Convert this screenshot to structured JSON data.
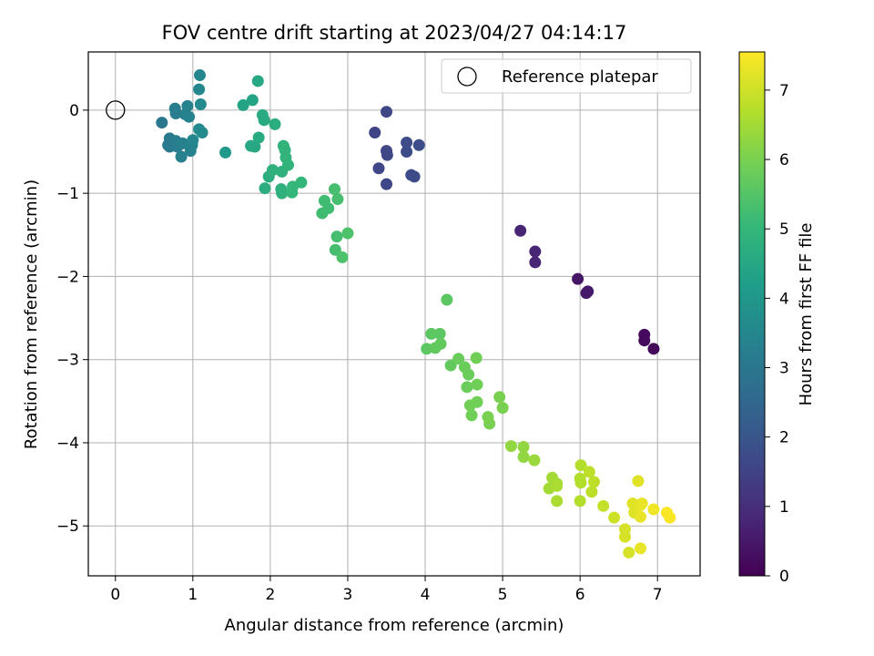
{
  "chart_data": {
    "type": "scatter",
    "title": "FOV centre drift starting at 2023/04/27 04:14:17",
    "xlabel": "Angular distance from reference (arcmin)",
    "ylabel": "Rotation from reference (arcmin)",
    "xlim": [
      -0.35,
      7.55
    ],
    "ylim": [
      -5.6,
      0.7
    ],
    "xticks": [
      "0",
      "1",
      "2",
      "3",
      "4",
      "5",
      "6",
      "7"
    ],
    "yticks": [
      "0",
      "−1",
      "−2",
      "−3",
      "−4",
      "−5"
    ],
    "grid": true,
    "legend": {
      "position": "top-right",
      "label": "Reference platepar"
    },
    "reference_point": {
      "x": 0,
      "y": 0
    },
    "colorbar": {
      "label": "Hours from first FF file",
      "min": 0,
      "max": 7.55,
      "ticks": [
        "0",
        "1",
        "2",
        "3",
        "4",
        "5",
        "6",
        "7"
      ],
      "colormap": [
        "#440154",
        "#482878",
        "#3e4a89",
        "#31688e",
        "#26828e",
        "#1f9e89",
        "#35b779",
        "#6ece58",
        "#b5de2b",
        "#fde725"
      ]
    },
    "series": [
      {
        "points": [
          {
            "x": 6.83,
            "y": -2.7,
            "c": 0.2
          },
          {
            "x": 6.83,
            "y": -2.77,
            "c": 0.2
          },
          {
            "x": 6.95,
            "y": -2.87,
            "c": 0.15
          },
          {
            "x": 5.97,
            "y": -2.03,
            "c": 0.45
          },
          {
            "x": 6.08,
            "y": -2.2,
            "c": 0.5
          },
          {
            "x": 6.1,
            "y": -2.18,
            "c": 0.5
          },
          {
            "x": 5.23,
            "y": -1.45,
            "c": 0.75
          },
          {
            "x": 5.42,
            "y": -1.7,
            "c": 0.8
          },
          {
            "x": 5.42,
            "y": -1.83,
            "c": 0.8
          },
          {
            "x": 3.35,
            "y": -0.27,
            "c": 1.5
          },
          {
            "x": 3.5,
            "y": -0.02,
            "c": 1.6
          },
          {
            "x": 3.5,
            "y": -0.49,
            "c": 1.6
          },
          {
            "x": 3.51,
            "y": -0.54,
            "c": 1.6
          },
          {
            "x": 3.4,
            "y": -0.7,
            "c": 1.6
          },
          {
            "x": 3.5,
            "y": -0.89,
            "c": 1.6
          },
          {
            "x": 3.76,
            "y": -0.39,
            "c": 1.7
          },
          {
            "x": 3.76,
            "y": -0.5,
            "c": 1.7
          },
          {
            "x": 3.82,
            "y": -0.78,
            "c": 1.7
          },
          {
            "x": 3.86,
            "y": -0.8,
            "c": 1.7
          },
          {
            "x": 3.92,
            "y": -0.42,
            "c": 1.75
          },
          {
            "x": 0.6,
            "y": -0.15,
            "c": 3.0
          },
          {
            "x": 0.7,
            "y": -0.34,
            "c": 3.1
          },
          {
            "x": 0.68,
            "y": -0.42,
            "c": 3.1
          },
          {
            "x": 0.7,
            "y": -0.44,
            "c": 3.1
          },
          {
            "x": 0.77,
            "y": 0.02,
            "c": 3.2
          },
          {
            "x": 0.78,
            "y": -0.04,
            "c": 3.2
          },
          {
            "x": 0.78,
            "y": -0.37,
            "c": 3.2
          },
          {
            "x": 0.8,
            "y": -0.44,
            "c": 3.2
          },
          {
            "x": 0.87,
            "y": -0.4,
            "c": 3.3
          },
          {
            "x": 0.85,
            "y": -0.56,
            "c": 3.3
          },
          {
            "x": 0.9,
            "y": -0.05,
            "c": 3.3
          },
          {
            "x": 0.93,
            "y": 0.05,
            "c": 3.4
          },
          {
            "x": 0.95,
            "y": -0.08,
            "c": 3.4
          },
          {
            "x": 0.97,
            "y": -0.49,
            "c": 3.4
          },
          {
            "x": 0.99,
            "y": -0.42,
            "c": 3.4
          },
          {
            "x": 1.0,
            "y": -0.36,
            "c": 3.5
          },
          {
            "x": 1.09,
            "y": 0.42,
            "c": 3.5
          },
          {
            "x": 1.08,
            "y": 0.25,
            "c": 3.5
          },
          {
            "x": 1.1,
            "y": 0.07,
            "c": 3.6
          },
          {
            "x": 1.08,
            "y": -0.23,
            "c": 3.6
          },
          {
            "x": 1.12,
            "y": -0.27,
            "c": 3.6
          },
          {
            "x": 1.42,
            "y": -0.51,
            "c": 4.0
          },
          {
            "x": 1.65,
            "y": 0.06,
            "c": 4.4
          },
          {
            "x": 1.77,
            "y": 0.12,
            "c": 4.4
          },
          {
            "x": 1.84,
            "y": 0.35,
            "c": 4.5
          },
          {
            "x": 1.75,
            "y": -0.43,
            "c": 4.5
          },
          {
            "x": 1.8,
            "y": -0.44,
            "c": 4.5
          },
          {
            "x": 1.85,
            "y": -0.33,
            "c": 4.6
          },
          {
            "x": 1.9,
            "y": -0.06,
            "c": 4.6
          },
          {
            "x": 1.92,
            "y": -0.12,
            "c": 4.6
          },
          {
            "x": 2.06,
            "y": -0.17,
            "c": 4.7
          },
          {
            "x": 1.93,
            "y": -0.94,
            "c": 4.7
          },
          {
            "x": 1.98,
            "y": -0.8,
            "c": 4.7
          },
          {
            "x": 2.03,
            "y": -0.72,
            "c": 4.8
          },
          {
            "x": 2.15,
            "y": -0.74,
            "c": 4.8
          },
          {
            "x": 2.14,
            "y": -0.95,
            "c": 4.8
          },
          {
            "x": 2.15,
            "y": -1.0,
            "c": 4.8
          },
          {
            "x": 2.17,
            "y": -0.43,
            "c": 4.9
          },
          {
            "x": 2.19,
            "y": -0.48,
            "c": 4.9
          },
          {
            "x": 2.2,
            "y": -0.57,
            "c": 4.9
          },
          {
            "x": 2.23,
            "y": -0.66,
            "c": 4.9
          },
          {
            "x": 2.29,
            "y": -0.92,
            "c": 5.0
          },
          {
            "x": 2.28,
            "y": -0.99,
            "c": 5.0
          },
          {
            "x": 2.4,
            "y": -0.87,
            "c": 5.0
          },
          {
            "x": 2.67,
            "y": -1.24,
            "c": 5.2
          },
          {
            "x": 2.7,
            "y": -1.09,
            "c": 5.2
          },
          {
            "x": 2.75,
            "y": -1.18,
            "c": 5.2
          },
          {
            "x": 2.83,
            "y": -0.95,
            "c": 5.3
          },
          {
            "x": 2.87,
            "y": -1.07,
            "c": 5.3
          },
          {
            "x": 2.86,
            "y": -1.52,
            "c": 5.3
          },
          {
            "x": 2.84,
            "y": -1.68,
            "c": 5.3
          },
          {
            "x": 2.93,
            "y": -1.77,
            "c": 5.4
          },
          {
            "x": 3.0,
            "y": -1.48,
            "c": 5.4
          },
          {
            "x": 4.28,
            "y": -2.28,
            "c": 5.6
          },
          {
            "x": 4.08,
            "y": -2.69,
            "c": 5.6
          },
          {
            "x": 4.19,
            "y": -2.69,
            "c": 5.6
          },
          {
            "x": 4.02,
            "y": -2.87,
            "c": 5.6
          },
          {
            "x": 4.13,
            "y": -2.86,
            "c": 5.7
          },
          {
            "x": 4.2,
            "y": -2.81,
            "c": 5.7
          },
          {
            "x": 4.33,
            "y": -3.07,
            "c": 5.7
          },
          {
            "x": 4.43,
            "y": -2.99,
            "c": 5.8
          },
          {
            "x": 4.51,
            "y": -3.09,
            "c": 5.8
          },
          {
            "x": 4.56,
            "y": -3.18,
            "c": 5.8
          },
          {
            "x": 4.54,
            "y": -3.33,
            "c": 5.8
          },
          {
            "x": 4.58,
            "y": -3.55,
            "c": 5.9
          },
          {
            "x": 4.6,
            "y": -3.67,
            "c": 5.9
          },
          {
            "x": 4.66,
            "y": -2.98,
            "c": 5.9
          },
          {
            "x": 4.67,
            "y": -3.3,
            "c": 5.9
          },
          {
            "x": 4.67,
            "y": -3.51,
            "c": 5.9
          },
          {
            "x": 4.81,
            "y": -3.69,
            "c": 6.0
          },
          {
            "x": 4.83,
            "y": -3.77,
            "c": 6.0
          },
          {
            "x": 4.96,
            "y": -3.45,
            "c": 6.0
          },
          {
            "x": 5.0,
            "y": -3.58,
            "c": 6.0
          },
          {
            "x": 5.11,
            "y": -4.04,
            "c": 6.3
          },
          {
            "x": 5.27,
            "y": -4.05,
            "c": 6.3
          },
          {
            "x": 5.27,
            "y": -4.17,
            "c": 6.3
          },
          {
            "x": 5.41,
            "y": -4.21,
            "c": 6.4
          },
          {
            "x": 5.6,
            "y": -4.55,
            "c": 6.5
          },
          {
            "x": 5.64,
            "y": -4.42,
            "c": 6.5
          },
          {
            "x": 5.7,
            "y": -4.49,
            "c": 6.5
          },
          {
            "x": 5.7,
            "y": -4.7,
            "c": 6.6
          },
          {
            "x": 5.7,
            "y": -4.52,
            "c": 6.6
          },
          {
            "x": 6.01,
            "y": -4.27,
            "c": 6.7
          },
          {
            "x": 6.0,
            "y": -4.43,
            "c": 6.7
          },
          {
            "x": 6.01,
            "y": -4.48,
            "c": 6.7
          },
          {
            "x": 6.0,
            "y": -4.7,
            "c": 6.7
          },
          {
            "x": 6.12,
            "y": -4.35,
            "c": 6.8
          },
          {
            "x": 6.18,
            "y": -4.47,
            "c": 6.8
          },
          {
            "x": 6.15,
            "y": -4.59,
            "c": 6.8
          },
          {
            "x": 6.3,
            "y": -4.76,
            "c": 6.9
          },
          {
            "x": 6.44,
            "y": -4.9,
            "c": 7.0
          },
          {
            "x": 6.58,
            "y": -5.04,
            "c": 7.1
          },
          {
            "x": 6.58,
            "y": -5.13,
            "c": 7.1
          },
          {
            "x": 6.63,
            "y": -5.32,
            "c": 7.1
          },
          {
            "x": 6.68,
            "y": -4.73,
            "c": 7.2
          },
          {
            "x": 6.7,
            "y": -4.84,
            "c": 7.2
          },
          {
            "x": 6.75,
            "y": -4.46,
            "c": 7.2
          },
          {
            "x": 6.78,
            "y": -4.75,
            "c": 7.3
          },
          {
            "x": 6.8,
            "y": -4.73,
            "c": 7.3
          },
          {
            "x": 6.78,
            "y": -4.89,
            "c": 7.3
          },
          {
            "x": 6.78,
            "y": -5.27,
            "c": 7.3
          },
          {
            "x": 6.95,
            "y": -4.8,
            "c": 7.4
          },
          {
            "x": 7.12,
            "y": -4.84,
            "c": 7.5
          },
          {
            "x": 7.16,
            "y": -4.9,
            "c": 7.5
          }
        ]
      }
    ]
  }
}
